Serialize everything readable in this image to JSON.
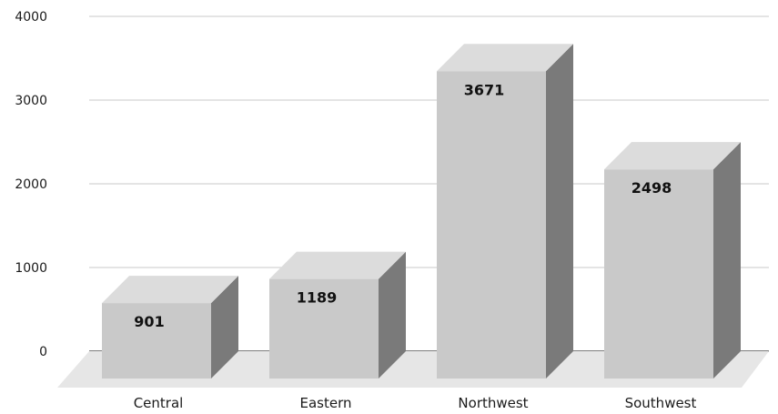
{
  "chart_data": {
    "type": "bar",
    "style": "3d-column",
    "categories": [
      "Central",
      "Eastern",
      "Northwest",
      "Southwest"
    ],
    "values": [
      901,
      1189,
      3671,
      2498
    ],
    "data_labels": [
      "901",
      "1189",
      "3671",
      "2498"
    ],
    "title": "",
    "xlabel": "",
    "ylabel": "",
    "ylim": [
      0,
      4000
    ],
    "yticks": [
      "0",
      "1000",
      "2000",
      "3000",
      "4000"
    ],
    "grid": true,
    "legend": "none",
    "colors": {
      "bar_front": "#c9c9c9",
      "bar_top": "#dcdcdc",
      "bar_side": "#7a7a7a",
      "floor": "#e6e6e6",
      "gridline": "#d4d4d4",
      "axis": "#555555"
    }
  }
}
